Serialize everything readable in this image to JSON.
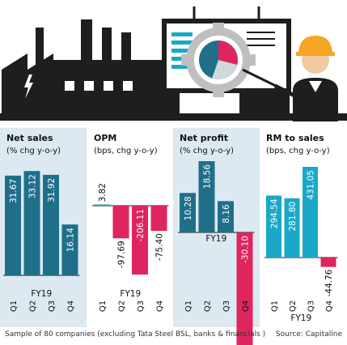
{
  "colors": {
    "positive_dark": "#1f6f8b",
    "positive_light": "#1aa8c9",
    "negative": "#e0245e",
    "panel_shade": "#dce9f1",
    "panel_white": "#ffffff",
    "factory": "#1e1e1e",
    "baseline": "#1a1a1a"
  },
  "icons": [
    "factory-icon",
    "lightning-bolt-icon",
    "gear-icon",
    "presentation-board-icon",
    "pie-chart-icon",
    "engineer-icon"
  ],
  "chart_data": [
    {
      "type": "bar",
      "title": "Net sales",
      "subtitle": "(% chg y-o-y)",
      "categories": [
        "Q1",
        "Q2",
        "Q3",
        "Q4"
      ],
      "xlabel": "FY19",
      "values": [
        31.67,
        33.12,
        31.92,
        16.14
      ],
      "labels": [
        "31.67",
        "33.12",
        "31.92",
        "16.14"
      ],
      "ylim": [
        0,
        36
      ]
    },
    {
      "type": "bar",
      "title": "OPM",
      "subtitle": "(bps, chg y-o-y)",
      "categories": [
        "Q1",
        "Q2",
        "Q3",
        "Q4"
      ],
      "xlabel": "FY19",
      "values": [
        3.82,
        -97.69,
        -206.11,
        -75.4
      ],
      "labels": [
        "3.82",
        "-97.69",
        "-206.11",
        "-75.40"
      ],
      "ylim": [
        -215,
        15
      ]
    },
    {
      "type": "bar",
      "title": "Net profit",
      "subtitle": "(% chg y-o-y)",
      "categories": [
        "Q1",
        "Q2",
        "Q3",
        "Q4"
      ],
      "xlabel": "FY19",
      "values": [
        10.28,
        18.56,
        8.16,
        -30.1
      ],
      "labels": [
        "10.28",
        "18.56",
        "8.16",
        "-30.10"
      ],
      "ylim": [
        -34,
        22
      ]
    },
    {
      "type": "bar",
      "title": "RM to sales",
      "subtitle": "(bps, chg y-o-y)",
      "categories": [
        "Q1",
        "Q2",
        "Q3",
        "Q4"
      ],
      "xlabel": "FY19",
      "values": [
        294.54,
        281.8,
        431.05,
        -44.76
      ],
      "labels": [
        "294.54",
        "281.80",
        "431.05",
        "-44.76"
      ],
      "ylim": [
        -90,
        460
      ]
    }
  ],
  "footer": {
    "note": "Sample of 80 companies (excluding Tata Steel BSL, banks & financials )",
    "source": "Source: Capitaline"
  }
}
